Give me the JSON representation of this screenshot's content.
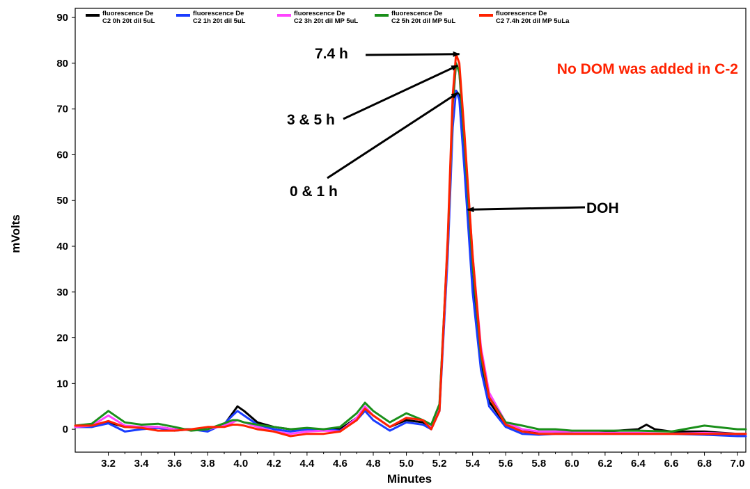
{
  "chart_data": {
    "type": "line",
    "title": "",
    "xlabel": "Minutes",
    "ylabel": "mVolts",
    "xlim": [
      3.0,
      7.05
    ],
    "ylim": [
      -5,
      92
    ],
    "x_ticks": [
      "3.2",
      "3.4",
      "3.6",
      "3.8",
      "4.0",
      "4.2",
      "4.4",
      "4.6",
      "4.8",
      "5.0",
      "5.2",
      "5.4",
      "5.6",
      "5.8",
      "6.0",
      "6.2",
      "6.4",
      "6.6",
      "6.8",
      "7.0"
    ],
    "y_ticks": [
      "0",
      "10",
      "20",
      "30",
      "40",
      "50",
      "60",
      "70",
      "80",
      "90"
    ],
    "grid": false,
    "legend_position": "top",
    "series": [
      {
        "name": "fluorescence De C2 0h 20t dil 5uL",
        "legend_line1": "fluorescence De",
        "legend_line2": "C2 0h 20t dil 5uL",
        "color": "#000000",
        "x": [
          3.0,
          3.1,
          3.2,
          3.3,
          3.4,
          3.5,
          3.6,
          3.7,
          3.8,
          3.9,
          3.95,
          3.98,
          4.02,
          4.1,
          4.2,
          4.3,
          4.4,
          4.5,
          4.6,
          4.7,
          4.75,
          4.8,
          4.9,
          5.0,
          5.1,
          5.15,
          5.2,
          5.25,
          5.28,
          5.3,
          5.32,
          5.35,
          5.4,
          5.45,
          5.5,
          5.6,
          5.7,
          5.8,
          5.9,
          6.0,
          6.2,
          6.4,
          6.45,
          6.5,
          6.6,
          6.8,
          7.0,
          7.05
        ],
        "y": [
          0.5,
          0.5,
          1.5,
          0.5,
          0.5,
          0.5,
          0,
          0,
          0,
          1,
          3.5,
          5,
          4,
          1.5,
          0.5,
          0,
          0,
          0,
          0,
          2.5,
          4.5,
          3,
          0.5,
          2,
          1.5,
          0.5,
          5,
          40,
          68,
          74,
          73,
          58,
          32,
          14,
          6,
          1,
          -0.5,
          -0.5,
          -0.5,
          -0.5,
          -0.5,
          0,
          1,
          0,
          -0.5,
          -0.5,
          -1,
          -1
        ]
      },
      {
        "name": "fluorescence De C2 1h 20t dil 5uL",
        "legend_line1": "fluorescence De",
        "legend_line2": "C2 1h 20t dil 5uL",
        "color": "#1a3cff",
        "x": [
          3.0,
          3.1,
          3.2,
          3.3,
          3.4,
          3.5,
          3.6,
          3.7,
          3.8,
          3.9,
          3.95,
          3.98,
          4.02,
          4.1,
          4.2,
          4.3,
          4.4,
          4.5,
          4.6,
          4.7,
          4.75,
          4.8,
          4.9,
          5.0,
          5.1,
          5.15,
          5.2,
          5.25,
          5.28,
          5.3,
          5.32,
          5.35,
          5.4,
          5.45,
          5.5,
          5.6,
          5.7,
          5.8,
          5.9,
          6.0,
          6.2,
          6.4,
          6.6,
          6.8,
          7.0,
          7.05
        ],
        "y": [
          0.5,
          0.5,
          1.3,
          -0.5,
          0,
          0.3,
          -0.3,
          0,
          -0.5,
          1.2,
          3,
          4,
          3,
          1,
          0,
          -0.5,
          0,
          0,
          -0.3,
          2,
          4,
          2,
          -0.3,
          1.5,
          1,
          0,
          4,
          38,
          66,
          74,
          72,
          57,
          30,
          13,
          5,
          0.5,
          -1,
          -1.2,
          -1,
          -1,
          -1,
          -1,
          -1,
          -1.2,
          -1.5,
          -1.5
        ]
      },
      {
        "name": "fluorescence De C2 3h 20t dil MP 5uL",
        "legend_line1": "fluorescence De",
        "legend_line2": "C2 3h 20t dil MP 5uL",
        "color": "#ff44ff",
        "x": [
          3.0,
          3.1,
          3.2,
          3.3,
          3.4,
          3.5,
          3.6,
          3.7,
          3.8,
          3.9,
          3.95,
          3.98,
          4.02,
          4.1,
          4.2,
          4.3,
          4.4,
          4.5,
          4.6,
          4.7,
          4.75,
          4.8,
          4.9,
          5.0,
          5.1,
          5.15,
          5.2,
          5.25,
          5.28,
          5.3,
          5.32,
          5.35,
          5.4,
          5.45,
          5.5,
          5.6,
          5.7,
          5.8,
          5.9,
          6.0,
          6.2,
          6.4,
          6.6,
          6.8,
          7.0,
          7.05
        ],
        "y": [
          0.5,
          0.8,
          3,
          0.8,
          0.5,
          0.5,
          0,
          -0.2,
          0,
          0.8,
          1.5,
          2,
          1.5,
          0.5,
          -0.5,
          -1,
          -0.5,
          -0.3,
          -0.5,
          2.5,
          5,
          3,
          0.5,
          2.5,
          2,
          0.5,
          5,
          40,
          70,
          80,
          78,
          64,
          38,
          18,
          8,
          1.5,
          0,
          -0.5,
          -0.5,
          -0.5,
          -0.8,
          -0.8,
          -1,
          -0.8,
          -1,
          -1
        ]
      },
      {
        "name": "fluorescence De C2 5h 20t dil MP 5uL",
        "legend_line1": "fluorescence De",
        "legend_line2": "C2 5h 20t dil MP 5uL",
        "color": "#1a8f1a",
        "x": [
          3.0,
          3.1,
          3.2,
          3.3,
          3.4,
          3.5,
          3.6,
          3.7,
          3.8,
          3.9,
          3.95,
          3.98,
          4.02,
          4.1,
          4.2,
          4.3,
          4.4,
          4.5,
          4.6,
          4.7,
          4.75,
          4.8,
          4.9,
          5.0,
          5.1,
          5.15,
          5.2,
          5.25,
          5.28,
          5.3,
          5.32,
          5.35,
          5.4,
          5.45,
          5.5,
          5.6,
          5.7,
          5.8,
          5.9,
          6.0,
          6.2,
          6.4,
          6.6,
          6.8,
          7.0,
          7.05
        ],
        "y": [
          0.8,
          1.2,
          4,
          1.5,
          1,
          1.2,
          0.5,
          -0.3,
          0,
          1.3,
          2,
          2,
          1.5,
          1,
          0.5,
          0,
          0.3,
          0,
          0.5,
          3.5,
          5.8,
          4,
          1.5,
          3.5,
          2,
          1,
          5.5,
          41,
          71,
          80,
          78,
          63,
          36,
          16,
          7,
          1.5,
          0.8,
          0,
          0,
          -0.3,
          -0.3,
          -0.3,
          -0.5,
          0.8,
          0,
          0
        ]
      },
      {
        "name": "fluorescence De C2 7.4h 20t dil MP 5uLa",
        "legend_line1": "fluorescence De",
        "legend_line2": "C2 7.4h 20t dil MP 5uLa",
        "color": "#ff2200",
        "x": [
          3.0,
          3.1,
          3.2,
          3.3,
          3.4,
          3.5,
          3.6,
          3.7,
          3.8,
          3.9,
          3.95,
          3.98,
          4.02,
          4.1,
          4.2,
          4.3,
          4.4,
          4.5,
          4.6,
          4.7,
          4.75,
          4.8,
          4.9,
          5.0,
          5.1,
          5.15,
          5.2,
          5.25,
          5.28,
          5.3,
          5.32,
          5.35,
          5.4,
          5.45,
          5.5,
          5.6,
          5.7,
          5.8,
          5.9,
          6.0,
          6.2,
          6.4,
          6.6,
          6.8,
          7.0,
          7.05
        ],
        "y": [
          0.8,
          0.8,
          1.8,
          0.5,
          0.3,
          -0.3,
          -0.3,
          0,
          0.5,
          0.5,
          1,
          1,
          0.8,
          0,
          -0.5,
          -1.5,
          -1,
          -1,
          -0.5,
          2,
          4.5,
          3,
          0.5,
          2.5,
          2,
          0,
          4,
          42,
          73,
          82,
          80,
          65,
          38,
          17,
          7,
          1,
          -0.5,
          -1,
          -1,
          -1,
          -1,
          -1,
          -1,
          -1,
          -1,
          -1
        ]
      }
    ],
    "annotations": [
      {
        "text": "7.4 h",
        "target_x": 5.32,
        "target_y": 82
      },
      {
        "text": "3 & 5 h",
        "target_x": 5.31,
        "target_y": 79.5
      },
      {
        "text": "0 & 1 h",
        "target_x": 5.31,
        "target_y": 73.5
      },
      {
        "text": "DOH",
        "target_x": 5.37,
        "target_y": 48
      }
    ],
    "note": {
      "text": "No DOM was added in C-2",
      "color": "#ff2200"
    }
  }
}
